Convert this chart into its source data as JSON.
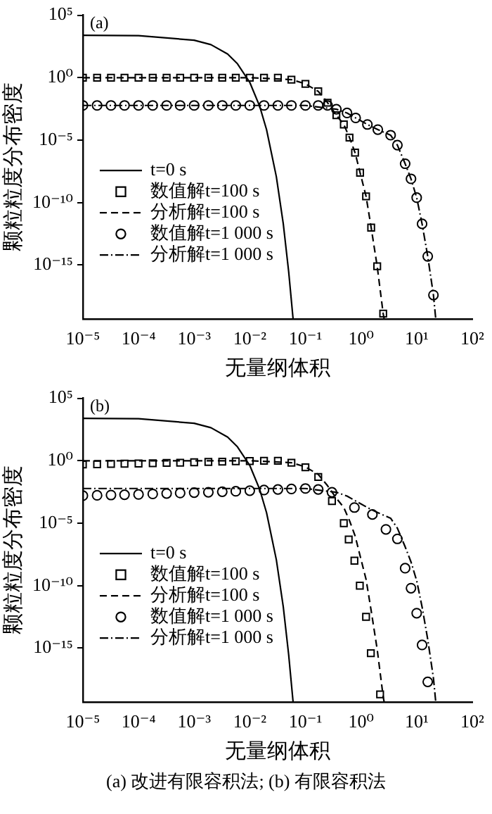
{
  "chart_data": [
    {
      "type": "line",
      "xlabel": "无量纲体积",
      "ylabel": "颗粒粒度分布密度",
      "annotations": [
        "(a)"
      ],
      "log": "xy",
      "legend": "center",
      "grid": false,
      "xlim": [
        1e-05,
        100
      ],
      "xticks": [
        {
          "value": 1e-05,
          "label": "10⁻⁵"
        },
        {
          "value": 0.0001,
          "label": "10⁻⁴"
        },
        {
          "value": 0.001,
          "label": "10⁻³"
        },
        {
          "value": 0.01,
          "label": "10⁻²"
        },
        {
          "value": 0.1,
          "label": "10⁻¹"
        },
        {
          "value": 1,
          "label": "10⁰"
        },
        {
          "value": 10,
          "label": "10¹"
        },
        {
          "value": 100,
          "label": "10²"
        }
      ],
      "ylim": [
        5e-20,
        100000.0
      ],
      "yticks": [
        {
          "value": 1e-15,
          "label": "10⁻¹⁵"
        },
        {
          "value": 1e-10,
          "label": "10⁻¹⁰"
        },
        {
          "value": 1e-05,
          "label": "10⁻⁵"
        },
        {
          "value": 1,
          "label": "10⁰"
        },
        {
          "value": 100000.0,
          "label": "10⁵"
        }
      ],
      "series": [
        {
          "name": "t=0 s",
          "color": "#000000",
          "marker": "none",
          "line_style": "solid",
          "x": [
            1e-05,
            0.0001,
            0.001,
            0.002,
            0.004,
            0.006,
            0.01,
            0.015,
            0.02,
            0.03,
            0.04,
            0.05,
            0.06
          ],
          "values": [
            2500,
            2300,
            1000,
            440,
            78,
            13,
            0.42,
            0.0054,
            7e-05,
            1.2e-08,
            2e-12,
            3e-16,
            5e-20
          ]
        },
        {
          "name": "数值解t=100 s",
          "type": "scatter",
          "color": "#000000",
          "marker": "square",
          "x": [
            1e-05,
            1.8e-05,
            3.2e-05,
            5.6e-05,
            0.0001,
            0.00018,
            0.00032,
            0.00056,
            0.001,
            0.0018,
            0.0032,
            0.0056,
            0.01,
            0.018,
            0.032,
            0.056,
            0.1,
            0.17,
            0.25,
            0.36,
            0.49,
            0.62,
            0.78,
            0.96,
            1.23,
            1.52,
            1.95,
            2.5
          ],
          "values": [
            1,
            1,
            1,
            1,
            1,
            1,
            1,
            1,
            1,
            1,
            1,
            1,
            1,
            1,
            1,
            0.7,
            0.32,
            0.08,
            0.01,
            0.001,
            0.00018,
            1.6e-05,
            1e-06,
            2.5e-08,
            3.2e-10,
            1e-12,
            8e-16,
            1.3e-19
          ]
        },
        {
          "name": "分析解t=100 s",
          "color": "#000000",
          "marker": "none",
          "line_style": "dashed",
          "x": [
            1e-05,
            0.001,
            0.01,
            0.056,
            0.1,
            0.17,
            0.25,
            0.36,
            0.49,
            0.62,
            0.78,
            0.96,
            1.23,
            1.52,
            1.95,
            2.5,
            2.6
          ],
          "values": [
            1,
            1,
            1,
            0.7,
            0.32,
            0.08,
            0.01,
            0.001,
            0.00018,
            1.6e-05,
            1e-06,
            2.5e-08,
            3.2e-10,
            1e-12,
            8e-16,
            1.3e-19,
            5e-20
          ]
        },
        {
          "name": "数值解t=1 000 s",
          "type": "scatter",
          "color": "#000000",
          "marker": "circle",
          "x": [
            1e-05,
            1.8e-05,
            3.2e-05,
            5.6e-05,
            0.0001,
            0.00018,
            0.00032,
            0.00056,
            0.001,
            0.0018,
            0.0032,
            0.0056,
            0.01,
            0.018,
            0.032,
            0.056,
            0.1,
            0.17,
            0.25,
            0.36,
            0.56,
            0.8,
            1.3,
            2,
            3.4,
            4.5,
            6.2,
            7.9,
            10,
            12.5,
            15.8,
            20
          ],
          "values": [
            0.006,
            0.006,
            0.006,
            0.006,
            0.006,
            0.006,
            0.006,
            0.006,
            0.006,
            0.006,
            0.006,
            0.006,
            0.006,
            0.006,
            0.006,
            0.006,
            0.006,
            0.006,
            0.006,
            0.003,
            0.0015,
            0.0006,
            0.00018,
            7e-05,
            2.5e-05,
            4e-06,
            1.3e-07,
            8e-09,
            2.5e-10,
            2e-12,
            5e-15,
            4e-18
          ]
        },
        {
          "name": "分析解t=1 000 s",
          "color": "#000000",
          "marker": "none",
          "line_style": "dashdot",
          "x": [
            1e-05,
            0.1,
            0.36,
            0.56,
            0.8,
            1.3,
            2,
            3.4,
            4.5,
            6.2,
            7.9,
            10,
            12.5,
            15.8,
            20,
            22
          ],
          "values": [
            0.006,
            0.006,
            0.003,
            0.0015,
            0.0006,
            0.00018,
            7e-05,
            2.5e-05,
            4e-06,
            1.3e-07,
            8e-09,
            2.5e-10,
            2e-12,
            5e-15,
            4e-18,
            5e-20
          ]
        }
      ]
    },
    {
      "type": "line",
      "xlabel": "无量纲体积",
      "ylabel": "颗粒粒度分布密度",
      "annotations": [
        "(b)",
        "(a) 改进有限容积法; (b) 有限容积法"
      ],
      "log": "xy",
      "legend": "center",
      "grid": false,
      "xlim": [
        1e-05,
        100
      ],
      "xticks": [
        {
          "value": 1e-05,
          "label": "10⁻⁵"
        },
        {
          "value": 0.0001,
          "label": "10⁻⁴"
        },
        {
          "value": 0.001,
          "label": "10⁻³"
        },
        {
          "value": 0.01,
          "label": "10⁻²"
        },
        {
          "value": 0.1,
          "label": "10⁻¹"
        },
        {
          "value": 1,
          "label": "10⁰"
        },
        {
          "value": 10,
          "label": "10¹"
        },
        {
          "value": 100,
          "label": "10²"
        }
      ],
      "ylim": [
        5e-20,
        100000.0
      ],
      "yticks": [
        {
          "value": 1e-15,
          "label": "10⁻¹⁵"
        },
        {
          "value": 1e-10,
          "label": "10⁻¹⁰"
        },
        {
          "value": 1e-05,
          "label": "10⁻⁵"
        },
        {
          "value": 1,
          "label": "10⁰"
        },
        {
          "value": 100000.0,
          "label": "10⁵"
        }
      ],
      "series": [
        {
          "name": "t=0 s",
          "color": "#000000",
          "marker": "none",
          "line_style": "solid",
          "x": [
            1e-05,
            0.0001,
            0.001,
            0.002,
            0.004,
            0.006,
            0.01,
            0.015,
            0.02,
            0.03,
            0.04,
            0.05,
            0.06
          ],
          "values": [
            2500,
            2300,
            1000,
            440,
            78,
            13,
            0.42,
            0.0054,
            7e-05,
            1.2e-08,
            2e-12,
            3e-16,
            5e-20
          ]
        },
        {
          "name": "数值解t=100 s",
          "type": "scatter",
          "color": "#000000",
          "marker": "square",
          "x": [
            1e-05,
            1.8e-05,
            3.2e-05,
            5.6e-05,
            0.0001,
            0.00018,
            0.00032,
            0.00056,
            0.001,
            0.0018,
            0.0032,
            0.0056,
            0.01,
            0.018,
            0.032,
            0.056,
            0.1,
            0.17,
            0.3,
            0.49,
            0.6,
            0.76,
            0.95,
            1.23,
            1.5,
            2.2
          ],
          "values": [
            0.5,
            0.52,
            0.55,
            0.58,
            0.6,
            0.63,
            0.67,
            0.7,
            0.75,
            0.8,
            0.85,
            0.9,
            0.95,
            1,
            1,
            0.7,
            0.3,
            0.05,
            0.0006,
            1e-05,
            5e-07,
            1e-08,
            1e-10,
            3.2e-13,
            4e-16,
            2e-19
          ]
        },
        {
          "name": "分析解t=100 s",
          "color": "#000000",
          "marker": "none",
          "line_style": "dashed",
          "x": [
            1e-05,
            0.001,
            0.01,
            0.056,
            0.1,
            0.17,
            0.25,
            0.36,
            0.49,
            0.62,
            0.78,
            0.96,
            1.23,
            1.52,
            1.95,
            2.5,
            2.6
          ],
          "values": [
            1,
            1,
            1,
            0.7,
            0.32,
            0.08,
            0.01,
            0.001,
            0.00018,
            1.6e-05,
            1e-06,
            2.5e-08,
            3.2e-10,
            1e-12,
            8e-16,
            1.3e-19,
            5e-20
          ]
        },
        {
          "name": "数值解t=1 000 s",
          "type": "scatter",
          "color": "#000000",
          "marker": "circle",
          "x": [
            1e-05,
            1.8e-05,
            3.2e-05,
            5.6e-05,
            0.0001,
            0.00018,
            0.00032,
            0.00056,
            0.001,
            0.0018,
            0.0032,
            0.0056,
            0.01,
            0.018,
            0.032,
            0.056,
            0.1,
            0.17,
            0.3,
            0.76,
            1.6,
            2.8,
            4.5,
            6.2,
            7.9,
            10,
            12.5,
            15.8
          ],
          "values": [
            0.0016,
            0.0017,
            0.0018,
            0.0019,
            0.002,
            0.0022,
            0.0024,
            0.0026,
            0.0028,
            0.003,
            0.0033,
            0.0036,
            0.004,
            0.0045,
            0.005,
            0.0055,
            0.006,
            0.005,
            0.003,
            0.00018,
            5e-05,
            3.2e-06,
            5.6e-07,
            2.5e-09,
            6.3e-11,
            6.3e-13,
            1.8e-15,
            2e-18
          ]
        },
        {
          "name": "分析解t=1 000 s",
          "color": "#000000",
          "marker": "none",
          "line_style": "dashdot",
          "x": [
            1e-05,
            0.1,
            0.36,
            0.56,
            0.8,
            1.3,
            2,
            3.4,
            4.5,
            6.2,
            7.9,
            10,
            12.5,
            15.8,
            20,
            22
          ],
          "values": [
            0.006,
            0.006,
            0.003,
            0.0015,
            0.0006,
            0.00018,
            7e-05,
            2.5e-05,
            4e-06,
            1.3e-07,
            8e-09,
            2.5e-10,
            2e-12,
            5e-15,
            4e-18,
            5e-20
          ]
        }
      ]
    }
  ]
}
